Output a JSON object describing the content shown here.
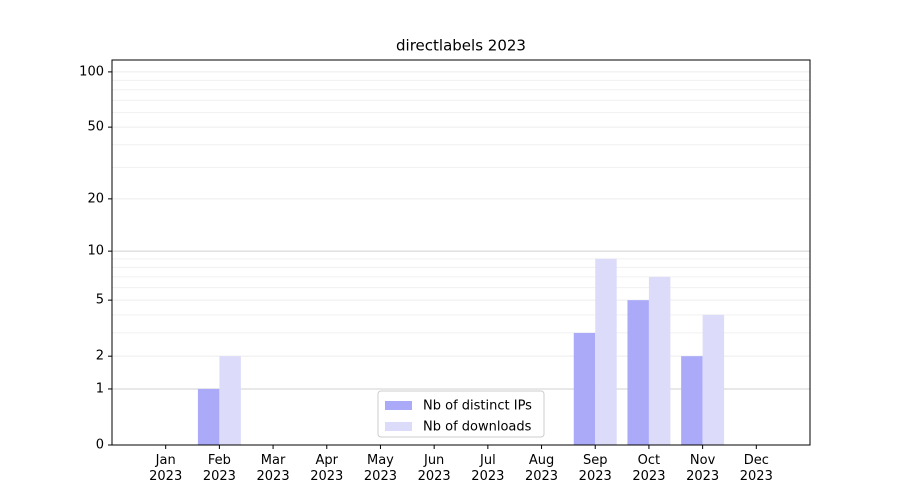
{
  "chart_data": {
    "type": "bar",
    "title": "directlabels 2023",
    "categories": [
      "Jan\n2023",
      "Feb\n2023",
      "Mar\n2023",
      "Apr\n2023",
      "May\n2023",
      "Jun\n2023",
      "Jul\n2023",
      "Aug\n2023",
      "Sep\n2023",
      "Oct\n2023",
      "Nov\n2023",
      "Dec\n2023"
    ],
    "series": [
      {
        "name": "Nb of distinct IPs",
        "color": "#aaaaf8",
        "values": [
          0,
          1,
          0,
          0,
          0,
          0,
          0,
          0,
          3,
          5,
          2,
          0
        ]
      },
      {
        "name": "Nb of downloads",
        "color": "#dcdcfa",
        "values": [
          0,
          2,
          0,
          0,
          0,
          0,
          0,
          0,
          9,
          7,
          4,
          0
        ]
      }
    ],
    "yscale": "log1p",
    "ylim": [
      0,
      116
    ],
    "yticks": [
      0,
      1,
      2,
      5,
      10,
      20,
      50,
      100
    ],
    "minor_yticks": [
      3,
      4,
      6,
      7,
      8,
      9,
      30,
      40,
      60,
      70,
      80,
      90
    ],
    "grid": true,
    "legend": "lower center"
  }
}
